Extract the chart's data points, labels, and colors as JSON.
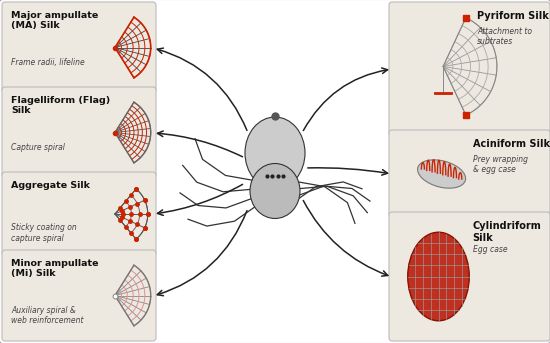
{
  "bg_color": "#ffffff",
  "panel_bg": "#ede8e0",
  "red": "#cc2200",
  "panels_left": [
    {
      "title": "Major ampullate\n(MA) Silk",
      "subtitle": "Frame radii, lifeline",
      "type": "ma_web"
    },
    {
      "title": "Flagelliform (Flag)\nSilk",
      "subtitle": "Capture spiral",
      "type": "flag_web"
    },
    {
      "title": "Aggregate Silk",
      "subtitle": "Sticky coating on\ncapture spiral",
      "type": "aggregate"
    },
    {
      "title": "Minor ampullate\n(Mi) Silk",
      "subtitle": "Auxiliary spiral &\nweb reinforcement",
      "type": "mi_web"
    }
  ],
  "panels_right": [
    {
      "title": "Pyriform Silk",
      "subtitle": "Attachment to\nsubtrates",
      "type": "pyriform"
    },
    {
      "title": "Aciniform Silk",
      "subtitle": "Prey wrapping\n& egg case",
      "type": "aciniform"
    },
    {
      "title": "Cylindriform\nSilk",
      "subtitle": "Egg case",
      "type": "cylindriform"
    }
  ],
  "arrow_color": "#222222"
}
